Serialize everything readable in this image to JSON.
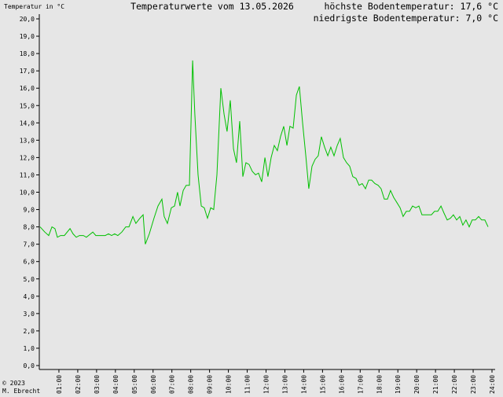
{
  "chart_data": {
    "type": "line",
    "title": "Temperaturwerte vom 13.05.2026",
    "y_label": "Temperatur in °C",
    "annotations": [
      "höchste Bodentemperatur: 17,6 °C",
      "niedrigste Bodentemperatur: 7,0 °C",
      "© 2023",
      "M. Ebrecht"
    ],
    "color": "#00c000",
    "xlim": [
      0,
      24
    ],
    "ylim": [
      0,
      20
    ],
    "xticks": [
      {
        "value": 1,
        "label": "01:00"
      },
      {
        "value": 2,
        "label": "02:00"
      },
      {
        "value": 3,
        "label": "03:00"
      },
      {
        "value": 4,
        "label": "04:00"
      },
      {
        "value": 5,
        "label": "05:00"
      },
      {
        "value": 6,
        "label": "06:00"
      },
      {
        "value": 7,
        "label": "07:00"
      },
      {
        "value": 8,
        "label": "08:00"
      },
      {
        "value": 9,
        "label": "09:00"
      },
      {
        "value": 10,
        "label": "10:00"
      },
      {
        "value": 11,
        "label": "11:00"
      },
      {
        "value": 12,
        "label": "12:00"
      },
      {
        "value": 13,
        "label": "13:00"
      },
      {
        "value": 14,
        "label": "14:00"
      },
      {
        "value": 15,
        "label": "15:00"
      },
      {
        "value": 16,
        "label": "16:00"
      },
      {
        "value": 17,
        "label": "17:00"
      },
      {
        "value": 18,
        "label": "18:00"
      },
      {
        "value": 19,
        "label": "19:00"
      },
      {
        "value": 20,
        "label": "20:00"
      },
      {
        "value": 21,
        "label": "21:00"
      },
      {
        "value": 22,
        "label": "22:00"
      },
      {
        "value": 23,
        "label": "23:00"
      },
      {
        "value": 24,
        "label": "24:00"
      }
    ],
    "yticks": [
      {
        "value": 0,
        "label": "0,0"
      },
      {
        "value": 1,
        "label": "1,0"
      },
      {
        "value": 2,
        "label": "2,0"
      },
      {
        "value": 3,
        "label": "3,0"
      },
      {
        "value": 4,
        "label": "4,0"
      },
      {
        "value": 5,
        "label": "5,0"
      },
      {
        "value": 6,
        "label": "6,0"
      },
      {
        "value": 7,
        "label": "7,0"
      },
      {
        "value": 8,
        "label": "8,0"
      },
      {
        "value": 9,
        "label": "9,0"
      },
      {
        "value": 10,
        "label": "10,0"
      },
      {
        "value": 11,
        "label": "11,0"
      },
      {
        "value": 12,
        "label": "12,0"
      },
      {
        "value": 13,
        "label": "13,0"
      },
      {
        "value": 14,
        "label": "14,0"
      },
      {
        "value": 15,
        "label": "15,0"
      },
      {
        "value": 16,
        "label": "16,0"
      },
      {
        "value": 17,
        "label": "17,0"
      },
      {
        "value": 18,
        "label": "18,0"
      },
      {
        "value": 19,
        "label": "19,0"
      },
      {
        "value": 20,
        "label": "20,0"
      }
    ],
    "x": [
      0.0,
      0.25,
      0.46,
      0.63,
      0.79,
      0.92,
      1.09,
      1.29,
      1.59,
      1.75,
      1.92,
      2.09,
      2.3,
      2.46,
      2.8,
      2.96,
      3.3,
      3.46,
      3.63,
      3.8,
      3.96,
      4.13,
      4.34,
      4.55,
      4.72,
      4.93,
      5.09,
      5.3,
      5.47,
      5.59,
      5.8,
      6.05,
      6.26,
      6.47,
      6.59,
      6.76,
      6.97,
      7.14,
      7.3,
      7.43,
      7.6,
      7.76,
      7.93,
      8.1,
      8.22,
      8.39,
      8.56,
      8.72,
      8.89,
      9.06,
      9.22,
      9.39,
      9.6,
      9.77,
      9.93,
      10.1,
      10.27,
      10.43,
      10.6,
      10.77,
      10.93,
      11.1,
      11.27,
      11.44,
      11.6,
      11.77,
      11.94,
      12.1,
      12.27,
      12.44,
      12.6,
      12.77,
      12.94,
      13.11,
      13.27,
      13.44,
      13.61,
      13.77,
      13.94,
      14.11,
      14.27,
      14.44,
      14.61,
      14.77,
      14.94,
      15.11,
      15.28,
      15.44,
      15.61,
      15.78,
      15.94,
      16.11,
      16.28,
      16.44,
      16.61,
      16.78,
      16.94,
      17.11,
      17.28,
      17.45,
      17.61,
      17.78,
      17.95,
      18.11,
      18.28,
      18.45,
      18.61,
      18.78,
      18.95,
      19.12,
      19.28,
      19.45,
      19.62,
      19.78,
      19.95,
      20.12,
      20.28,
      20.45,
      20.62,
      20.78,
      20.95,
      21.12,
      21.29,
      21.45,
      21.62,
      21.79,
      21.95,
      22.12,
      22.29,
      22.45,
      22.62,
      22.79,
      22.95,
      23.12,
      23.29,
      23.45,
      23.62,
      23.79
    ],
    "values": [
      8.0,
      7.7,
      7.5,
      8.0,
      7.9,
      7.4,
      7.5,
      7.5,
      7.9,
      7.6,
      7.4,
      7.5,
      7.5,
      7.4,
      7.7,
      7.5,
      7.5,
      7.5,
      7.6,
      7.5,
      7.6,
      7.5,
      7.7,
      8.0,
      8.0,
      8.6,
      8.2,
      8.5,
      8.7,
      7.0,
      7.6,
      8.5,
      9.2,
      9.6,
      8.6,
      8.2,
      9.1,
      9.2,
      10.0,
      9.2,
      10.1,
      10.4,
      10.4,
      17.6,
      14.5,
      11.0,
      9.2,
      9.1,
      8.5,
      9.1,
      9.0,
      11.0,
      16.0,
      14.5,
      13.5,
      15.3,
      12.5,
      11.7,
      14.1,
      10.9,
      11.7,
      11.6,
      11.2,
      11.0,
      11.1,
      10.6,
      12.0,
      10.9,
      12.0,
      12.7,
      12.4,
      13.2,
      13.8,
      12.7,
      13.8,
      13.7,
      15.6,
      16.1,
      14.0,
      12.1,
      10.2,
      11.5,
      11.9,
      12.1,
      13.2,
      12.6,
      12.1,
      12.6,
      12.1,
      12.7,
      13.1,
      12.0,
      11.7,
      11.5,
      10.9,
      10.8,
      10.4,
      10.5,
      10.2,
      10.7,
      10.7,
      10.5,
      10.4,
      10.2,
      9.6,
      9.6,
      10.1,
      9.7,
      9.4,
      9.1,
      8.6,
      8.9,
      8.9,
      9.2,
      9.1,
      9.2,
      8.7,
      8.7,
      8.7,
      8.7,
      8.9,
      8.9,
      9.2,
      8.8,
      8.4,
      8.5,
      8.7,
      8.4,
      8.6,
      8.1,
      8.4,
      8.0,
      8.4,
      8.4,
      8.6,
      8.4,
      8.4,
      8.0
    ]
  }
}
